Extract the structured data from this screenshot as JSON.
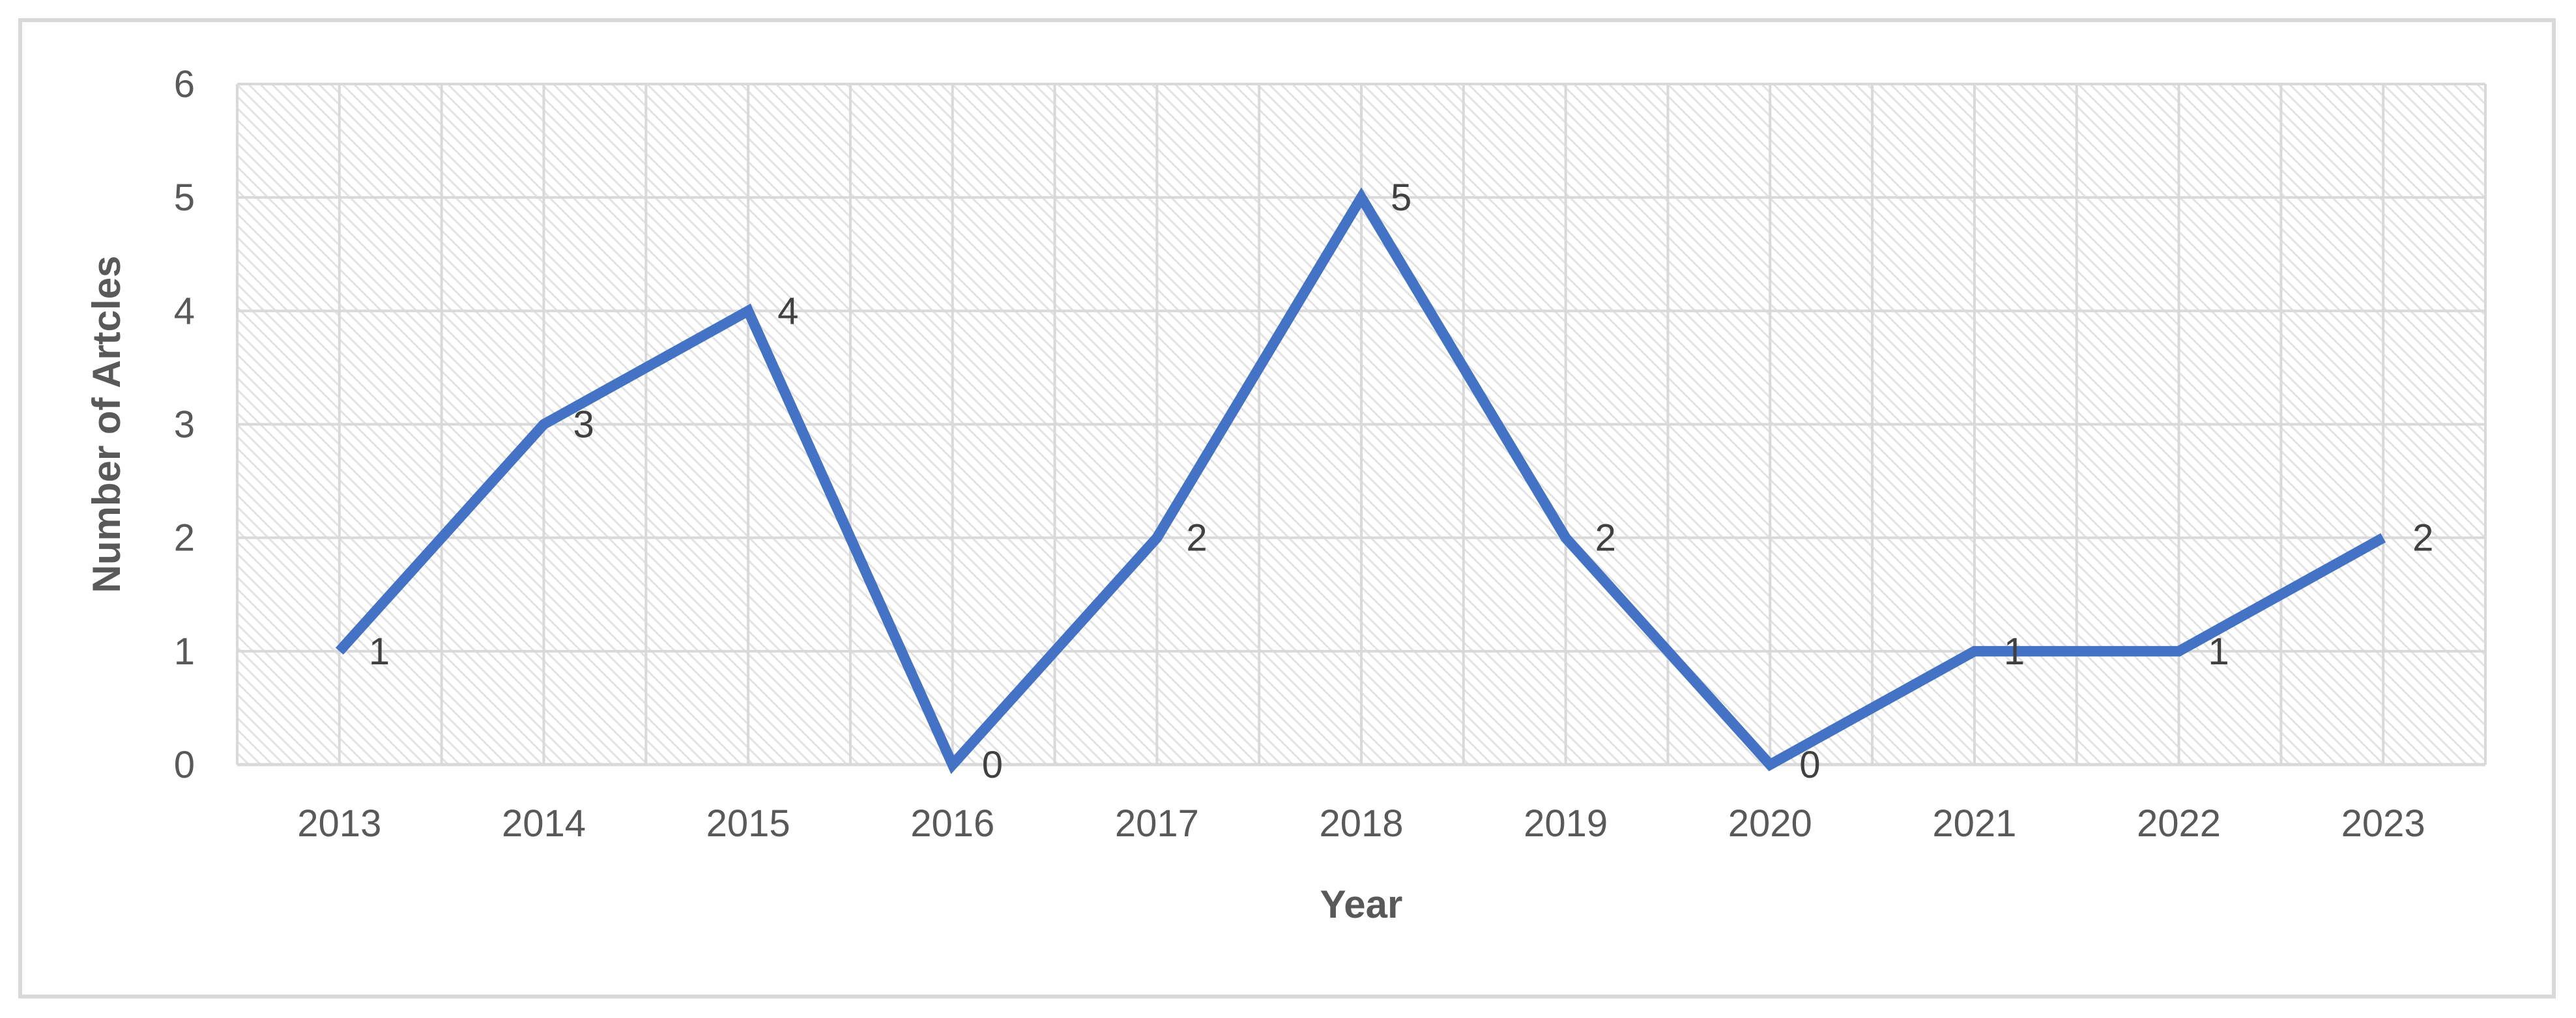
{
  "chart_data": {
    "type": "line",
    "title": "",
    "xlabel": "Year",
    "ylabel": "Number of Artcles",
    "categories": [
      "2013",
      "2014",
      "2015",
      "2016",
      "2017",
      "2018",
      "2019",
      "2020",
      "2021",
      "2022",
      "2023"
    ],
    "series": [
      {
        "values": [
          1,
          3,
          4,
          0,
          2,
          5,
          2,
          0,
          1,
          1,
          2
        ]
      }
    ],
    "ylim": [
      0,
      6
    ],
    "yticks": [
      0,
      1,
      2,
      3,
      4,
      5,
      6
    ],
    "grid": true,
    "legend": "none",
    "data_labels": true,
    "colors": {
      "line": "#4472c4",
      "grid": "#d9d9d9",
      "hatch": "#e6e6e6"
    }
  }
}
